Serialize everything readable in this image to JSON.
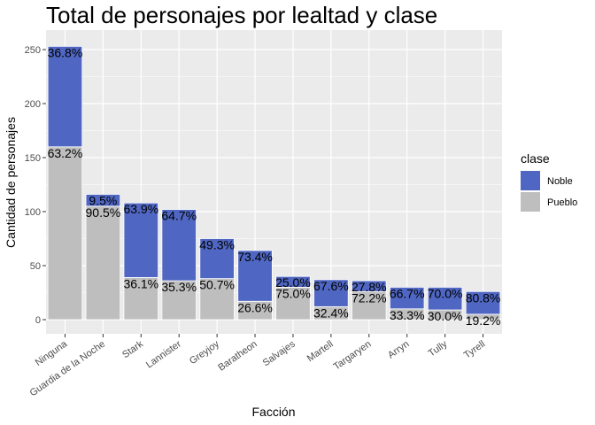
{
  "chart_data": {
    "type": "bar",
    "stacked": true,
    "title": "Total de personajes por lealtad y clase",
    "xlabel": "Facción",
    "ylabel": "Cantidad de personajes",
    "ylim": [
      0,
      262
    ],
    "yticks": [
      0,
      50,
      100,
      150,
      200,
      250
    ],
    "grid": true,
    "legend": {
      "title": "clase",
      "position": "right"
    },
    "categories": [
      "Ninguna",
      "Guardia de la Noche",
      "Stark",
      "Lannister",
      "Greyjoy",
      "Baratheon",
      "Salvajes",
      "Martell",
      "Targaryen",
      "Arryn",
      "Tully",
      "Tyrell"
    ],
    "series": [
      {
        "name": "Pueblo",
        "color": "#bebebe",
        "values": [
          160,
          105,
          39,
          36,
          38,
          17,
          30,
          12,
          26,
          10,
          9,
          5
        ],
        "labels": [
          "63.2%",
          "90.5%",
          "36.1%",
          "35.3%",
          "50.7%",
          "26.6%",
          "75.0%",
          "32.4%",
          "72.2%",
          "33.3%",
          "30.0%",
          "19.2%"
        ]
      },
      {
        "name": "Noble",
        "color": "#4f66c2",
        "values": [
          93,
          11,
          69,
          66,
          37,
          47,
          10,
          25,
          10,
          20,
          21,
          21
        ],
        "labels": [
          "36.8%",
          "9.5%",
          "63.9%",
          "64.7%",
          "49.3%",
          "73.4%",
          "25.0%",
          "67.6%",
          "27.8%",
          "66.7%",
          "70.0%",
          "80.8%"
        ]
      }
    ]
  }
}
